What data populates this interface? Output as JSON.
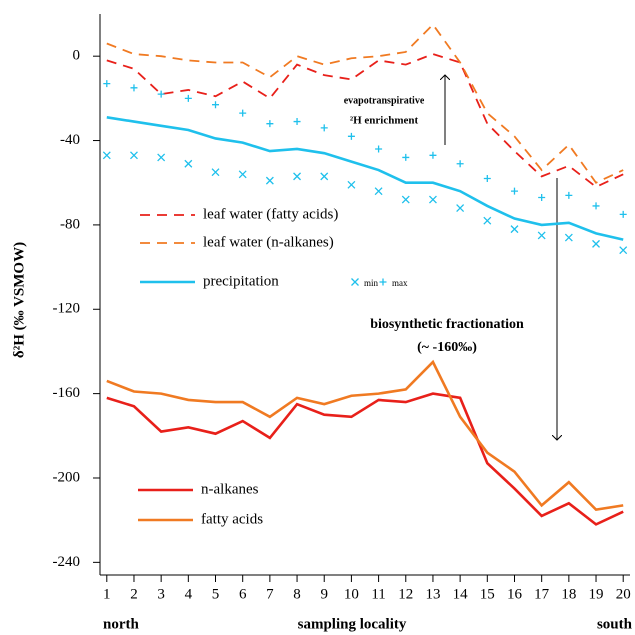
{
  "chart_data": {
    "type": "line",
    "y_label": "δ²H (‰ VSMOW)",
    "x_label": "sampling locality",
    "x_end_labels": [
      "north",
      "south"
    ],
    "annotations": [
      "evapotranspirative",
      "²H enrichment",
      "biosynthetic fractionation",
      "(~ -160‰)"
    ],
    "x": [
      1,
      2,
      3,
      4,
      5,
      6,
      7,
      8,
      9,
      10,
      11,
      12,
      13,
      14,
      15,
      16,
      17,
      18,
      19,
      20
    ],
    "xlim": [
      0.75,
      20.25
    ],
    "xticks": [
      1,
      2,
      3,
      4,
      5,
      6,
      7,
      8,
      9,
      10,
      11,
      12,
      13,
      14,
      15,
      16,
      17,
      18,
      19,
      20
    ],
    "ylim": [
      -246,
      20
    ],
    "yticks": [
      -240,
      -200,
      -160,
      -120,
      -80,
      -40,
      0
    ],
    "series": [
      {
        "name": "leaf water (fatty acids)",
        "color": "#e8201a",
        "style": "dashed",
        "values": [
          -2,
          -6,
          -18,
          -16,
          -19,
          -12,
          -20,
          -4,
          -9,
          -11,
          -2,
          -4,
          1,
          -3,
          -32,
          -45,
          -57,
          -52,
          -62,
          -56
        ]
      },
      {
        "name": "leaf water (n-alkanes)",
        "color": "#f07a22",
        "style": "dashed",
        "values": [
          6,
          1,
          0,
          -2,
          -3,
          -3,
          -10,
          0,
          -4,
          -1,
          0,
          2,
          15,
          -3,
          -27,
          -38,
          -54,
          -42,
          -60,
          -54
        ]
      },
      {
        "name": "precipitation",
        "color": "#1fc0ec",
        "style": "solid",
        "values": [
          -29,
          -31,
          -33,
          -35,
          -39,
          -41,
          -45,
          -44,
          -46,
          -50,
          -54,
          -60,
          -60,
          -64,
          -71,
          -77,
          -80,
          -79,
          -84,
          -87
        ]
      },
      {
        "name": "min",
        "color": "#1fc0ec",
        "style": "cross",
        "values": [
          -47,
          -47,
          -48,
          -51,
          -55,
          -56,
          -59,
          -57,
          -57,
          -61,
          -64,
          -68,
          -68,
          -72,
          -78,
          -82,
          -85,
          -86,
          -89,
          -92
        ]
      },
      {
        "name": "max",
        "color": "#1fc0ec",
        "style": "plus",
        "values": [
          -13,
          -15,
          -18,
          -20,
          -23,
          -27,
          -32,
          -31,
          -34,
          -38,
          -44,
          -48,
          -47,
          -51,
          -58,
          -64,
          -67,
          -66,
          -71,
          -75
        ]
      },
      {
        "name": "n-alkanes",
        "color": "#e8201a",
        "style": "solid",
        "values": [
          -162,
          -166,
          -178,
          -176,
          -179,
          -173,
          -181,
          -165,
          -170,
          -171,
          -163,
          -164,
          -160,
          -162,
          -193,
          -205,
          -218,
          -212,
          -222,
          -216
        ]
      },
      {
        "name": "fatty acids",
        "color": "#f07a22",
        "style": "solid",
        "values": [
          -154,
          -159,
          -160,
          -163,
          -164,
          -164,
          -171,
          -162,
          -165,
          -161,
          -160,
          -158,
          -145,
          -171,
          -188,
          -197,
          -213,
          -202,
          -215,
          -213
        ]
      }
    ]
  }
}
